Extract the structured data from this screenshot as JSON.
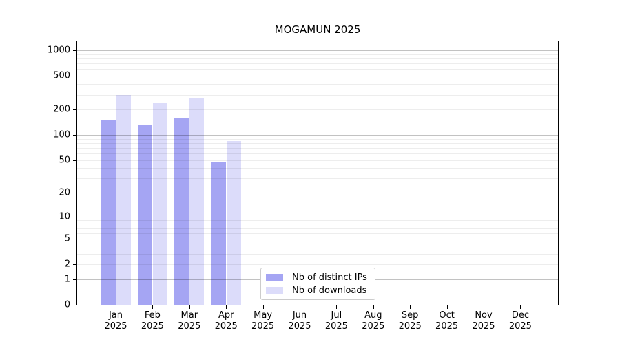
{
  "chart_data": {
    "type": "bar",
    "title": "MOGAMUN 2025",
    "x_year_label": "2025",
    "categories": [
      "Jan",
      "Feb",
      "Mar",
      "Apr",
      "May",
      "Jun",
      "Jul",
      "Aug",
      "Sep",
      "Oct",
      "Nov",
      "Dec"
    ],
    "series": [
      {
        "name": "Nb of distinct IPs",
        "color": "#a5a5f3",
        "values": [
          150,
          130,
          160,
          48,
          null,
          null,
          null,
          null,
          null,
          null,
          null,
          null
        ]
      },
      {
        "name": "Nb of downloads",
        "color": "#dcdcfa",
        "values": [
          300,
          240,
          270,
          85,
          null,
          null,
          null,
          null,
          null,
          null,
          null,
          null
        ]
      }
    ],
    "y_axis": {
      "scale": "log10(1+value)",
      "tick_values": [
        0,
        1,
        2,
        5,
        10,
        20,
        50,
        100,
        200,
        500,
        1000
      ],
      "major_grid_values": [
        1,
        10,
        100,
        1000
      ],
      "minor_grid_values": [
        2,
        3,
        4,
        5,
        6,
        7,
        8,
        9,
        20,
        30,
        40,
        50,
        60,
        70,
        80,
        90,
        200,
        300,
        400,
        500,
        600,
        700,
        800,
        900
      ],
      "ylim": [
        0,
        1283
      ]
    },
    "legend_position": "lower center inside plot",
    "grid": true
  }
}
